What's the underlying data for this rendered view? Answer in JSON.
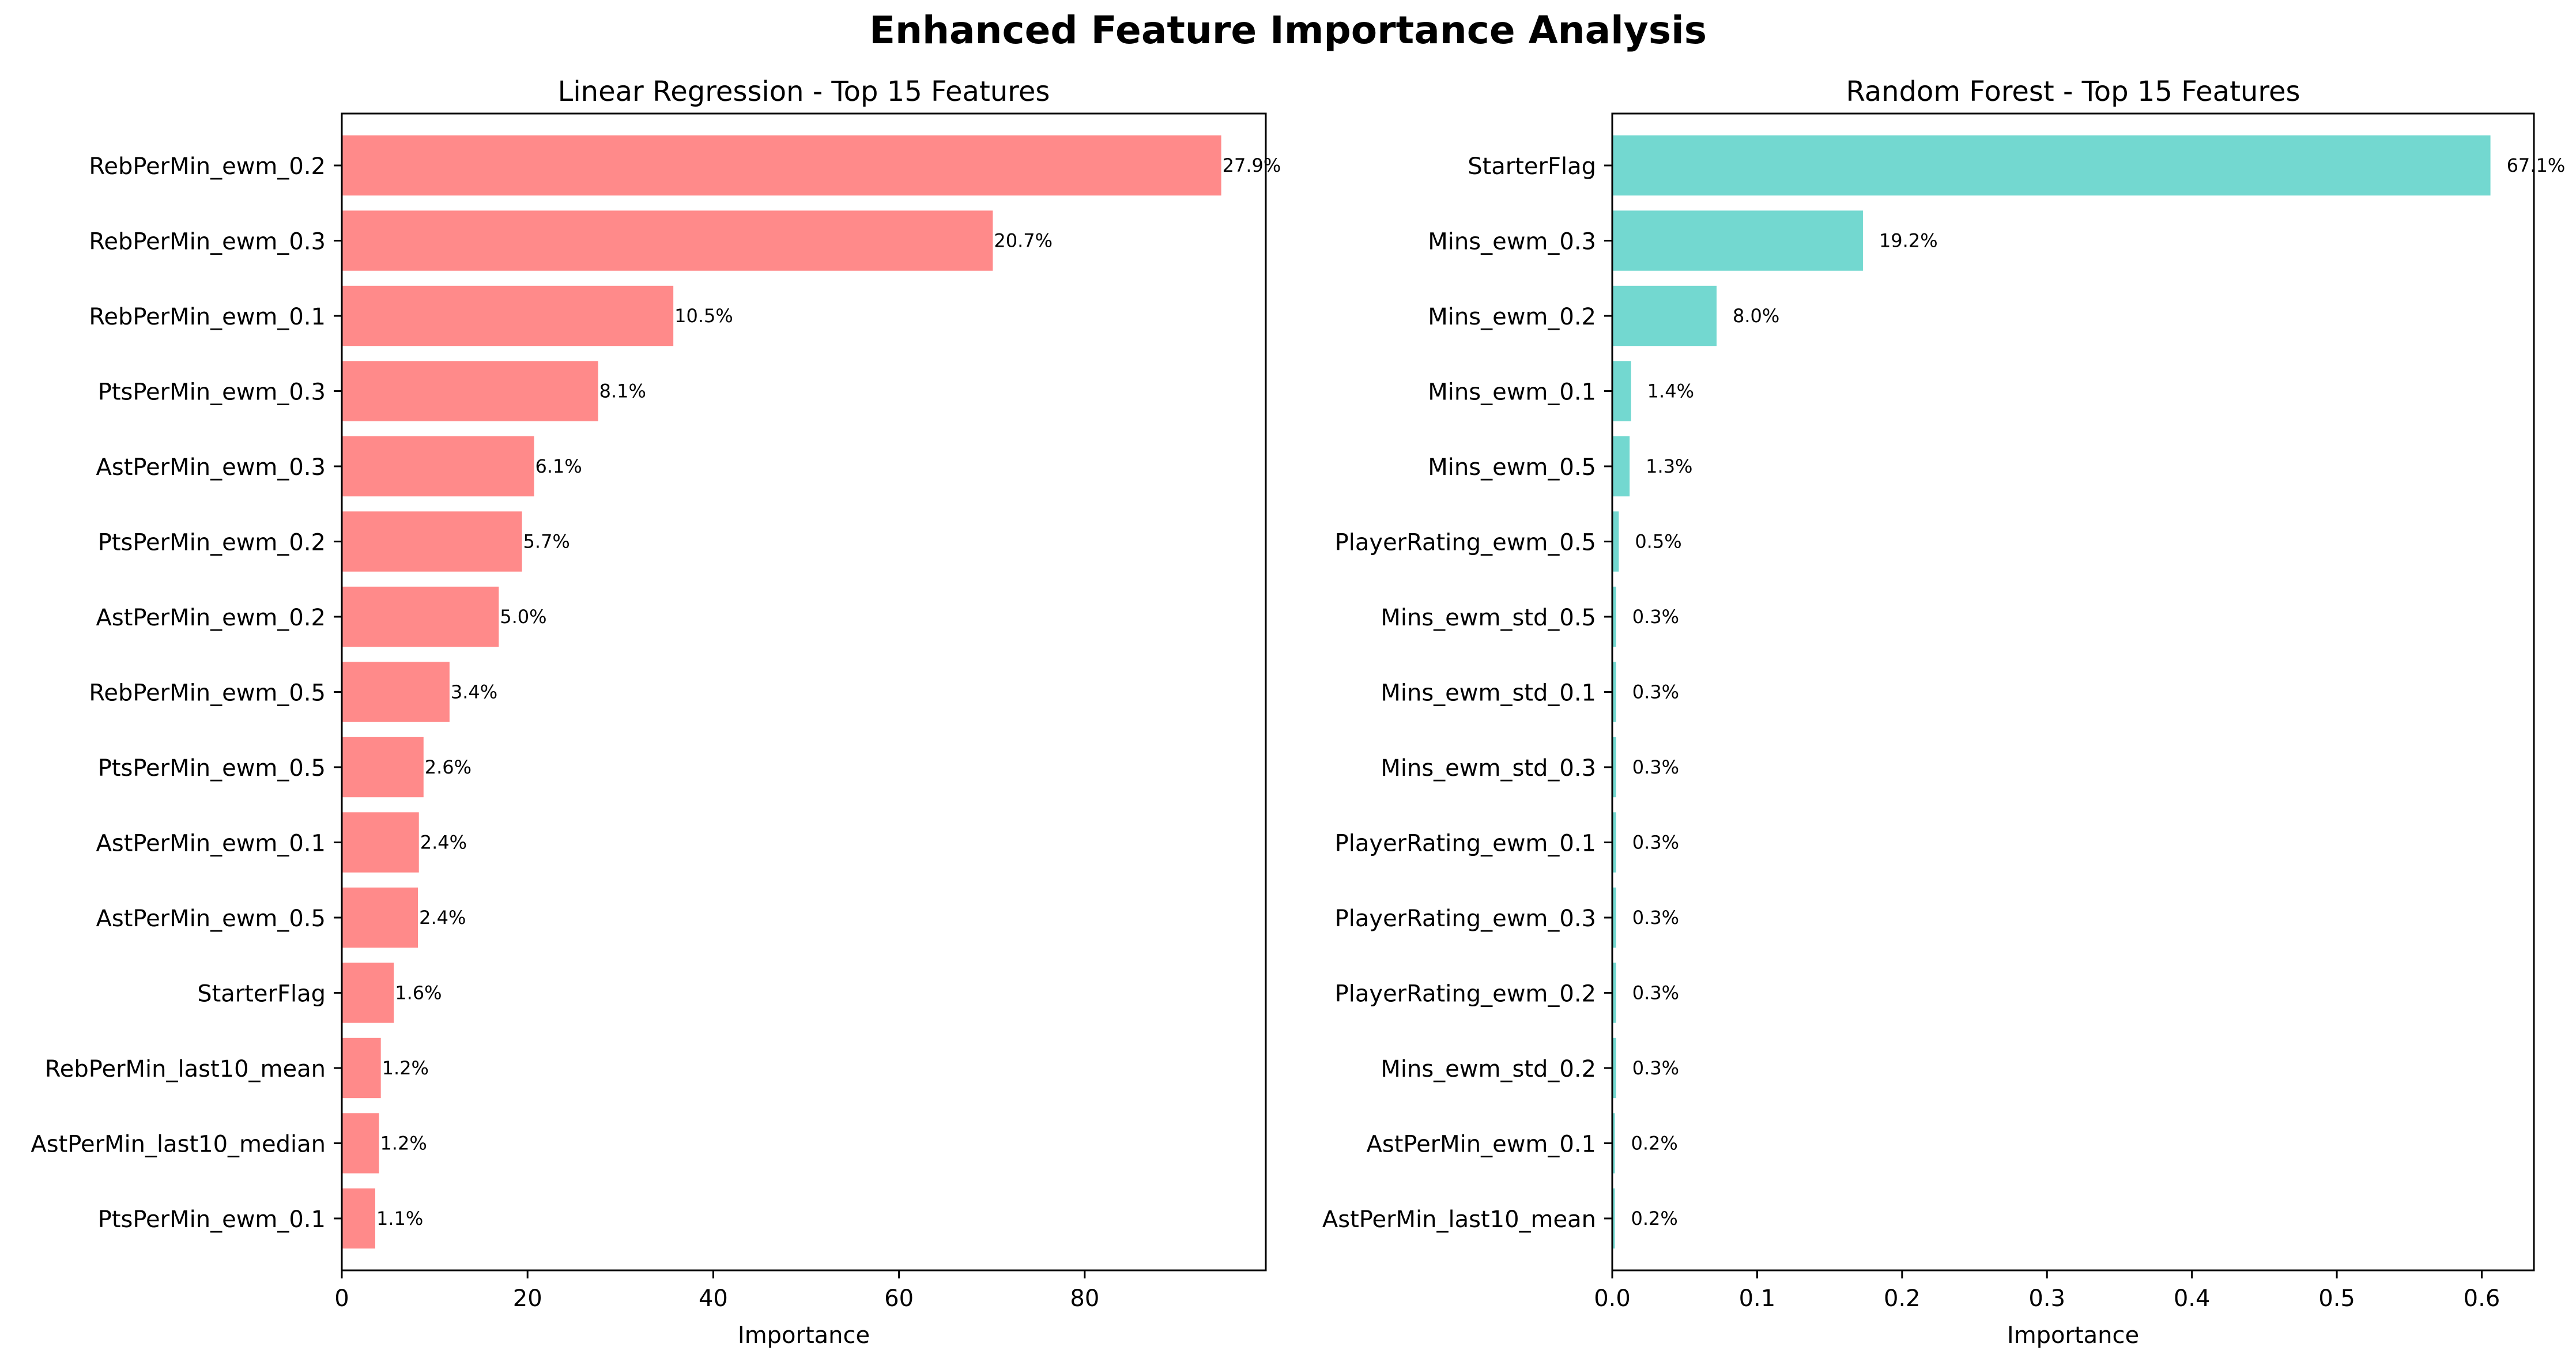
{
  "title": "Enhanced Feature Importance Analysis",
  "chart_data": [
    {
      "type": "bar",
      "orientation": "horizontal",
      "title": "Linear Regression - Top 15 Features",
      "xlabel": "Importance",
      "ylabel": "",
      "xlim": [
        0,
        99.5
      ],
      "xticks": [
        0,
        20,
        40,
        60,
        80
      ],
      "xtick_labels": [
        "0",
        "20",
        "40",
        "60",
        "80"
      ],
      "bar_color": "#FF8A8A",
      "grid": false,
      "categories": [
        "RebPerMin_ewm_0.2",
        "RebPerMin_ewm_0.3",
        "RebPerMin_ewm_0.1",
        "PtsPerMin_ewm_0.3",
        "AstPerMin_ewm_0.3",
        "PtsPerMin_ewm_0.2",
        "AstPerMin_ewm_0.2",
        "RebPerMin_ewm_0.5",
        "PtsPerMin_ewm_0.5",
        "AstPerMin_ewm_0.1",
        "AstPerMin_ewm_0.5",
        "StarterFlag",
        "RebPerMin_last10_mean",
        "AstPerMin_last10_median",
        "PtsPerMin_ewm_0.1"
      ],
      "values": [
        94.7,
        70.1,
        35.7,
        27.6,
        20.7,
        19.4,
        16.9,
        11.6,
        8.8,
        8.3,
        8.2,
        5.6,
        4.2,
        4.0,
        3.6
      ],
      "data_labels": [
        "27.9%",
        "20.7%",
        "10.5%",
        "8.1%",
        "6.1%",
        "5.7%",
        "5.0%",
        "3.4%",
        "2.6%",
        "2.4%",
        "2.4%",
        "1.6%",
        "1.2%",
        "1.2%",
        "1.1%"
      ]
    },
    {
      "type": "bar",
      "orientation": "horizontal",
      "title": "Random Forest - Top 15 Features",
      "xlabel": "Importance",
      "ylabel": "",
      "xlim": [
        0,
        0.636
      ],
      "xticks": [
        0,
        0.1,
        0.2,
        0.3,
        0.4,
        0.5,
        0.6
      ],
      "xtick_labels": [
        "0.0",
        "0.1",
        "0.2",
        "0.3",
        "0.4",
        "0.5",
        "0.6"
      ],
      "bar_color": "#73D8D0",
      "grid": false,
      "categories": [
        "StarterFlag",
        "Mins_ewm_0.3",
        "Mins_ewm_0.2",
        "Mins_ewm_0.1",
        "Mins_ewm_0.5",
        "PlayerRating_ewm_0.5",
        "Mins_ewm_std_0.5",
        "Mins_ewm_std_0.1",
        "Mins_ewm_std_0.3",
        "PlayerRating_ewm_0.1",
        "PlayerRating_ewm_0.3",
        "PlayerRating_ewm_0.2",
        "Mins_ewm_std_0.2",
        "AstPerMin_ewm_0.1",
        "AstPerMin_last10_mean"
      ],
      "values": [
        0.606,
        0.173,
        0.072,
        0.013,
        0.012,
        0.0045,
        0.0027,
        0.0027,
        0.0027,
        0.0027,
        0.0027,
        0.0027,
        0.0027,
        0.0018,
        0.0018
      ],
      "data_labels": [
        "67.1%",
        "19.2%",
        "8.0%",
        "1.4%",
        "1.3%",
        "0.5%",
        "0.3%",
        "0.3%",
        "0.3%",
        "0.3%",
        "0.3%",
        "0.3%",
        "0.3%",
        "0.2%",
        "0.2%"
      ]
    }
  ]
}
